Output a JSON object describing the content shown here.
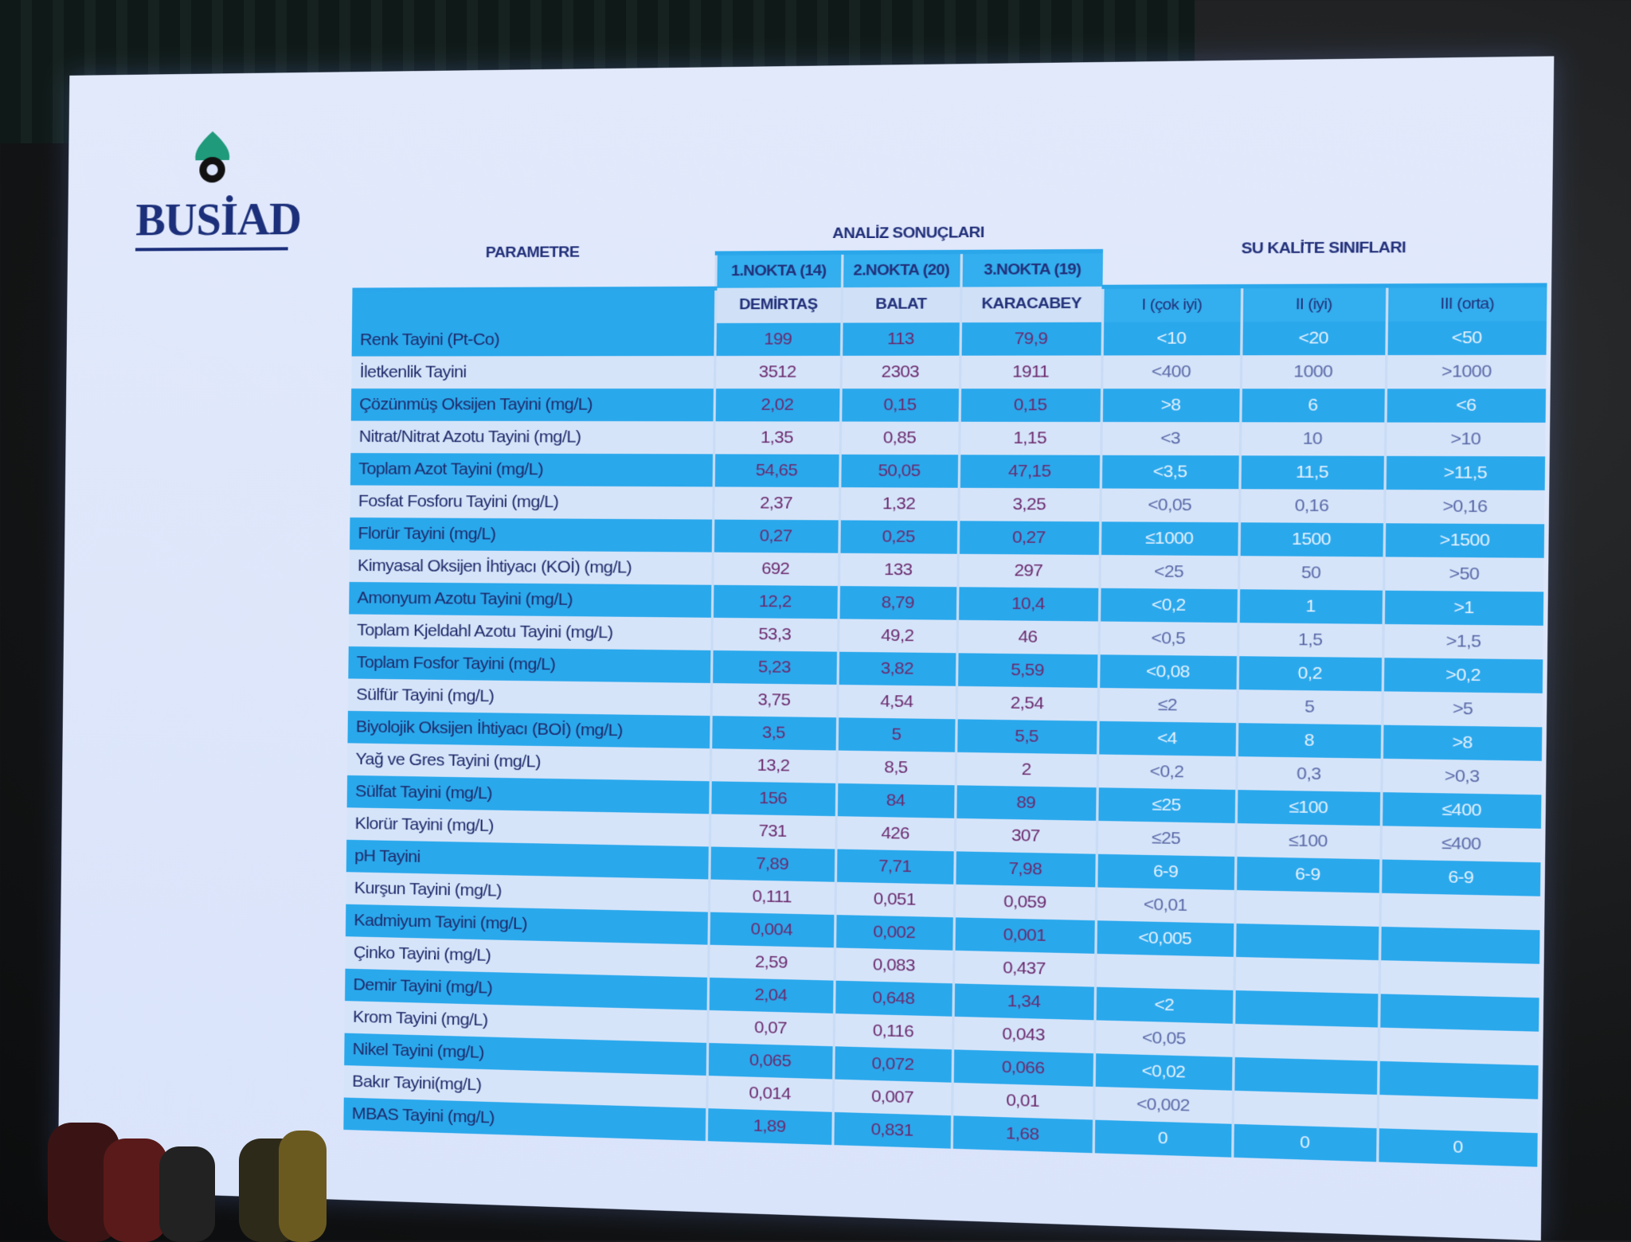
{
  "logo": {
    "name": "BUSİAD"
  },
  "table": {
    "header": {
      "parameter": "PARAMETRE",
      "analysis": "ANALİZ SONUÇLARI",
      "classes": "SU KALİTE SINIFLARI",
      "points": [
        "1.NOKTA (14)",
        "2.NOKTA (20)",
        "3.NOKTA (19)"
      ],
      "locations": [
        "DEMİRTAŞ",
        "BALAT",
        "KARACABEY"
      ],
      "class_names": [
        "I (çok iyi)",
        "II (iyi)",
        "III (orta)"
      ]
    },
    "rows": [
      [
        "Renk Tayini (Pt-Co)",
        "199",
        "113",
        "79,9",
        "<10",
        "<20",
        "<50"
      ],
      [
        "İletkenlik Tayini",
        "3512",
        "2303",
        "1911",
        "<400",
        "1000",
        ">1000"
      ],
      [
        "Çözünmüş Oksijen Tayini (mg/L)",
        "2,02",
        "0,15",
        "0,15",
        ">8",
        "6",
        "<6"
      ],
      [
        "Nitrat/Nitrat Azotu Tayini (mg/L)",
        "1,35",
        "0,85",
        "1,15",
        "<3",
        "10",
        ">10"
      ],
      [
        "Toplam Azot Tayini (mg/L)",
        "54,65",
        "50,05",
        "47,15",
        "<3,5",
        "11,5",
        ">11,5"
      ],
      [
        "Fosfat Fosforu Tayini (mg/L)",
        "2,37",
        "1,32",
        "3,25",
        "<0,05",
        "0,16",
        ">0,16"
      ],
      [
        "Florür Tayini (mg/L)",
        "0,27",
        "0,25",
        "0,27",
        "≤1000",
        "1500",
        ">1500"
      ],
      [
        "Kimyasal Oksijen İhtiyacı (KOİ) (mg/L)",
        "692",
        "133",
        "297",
        "<25",
        "50",
        ">50"
      ],
      [
        "Amonyum Azotu Tayini (mg/L)",
        "12,2",
        "8,79",
        "10,4",
        "<0,2",
        "1",
        ">1"
      ],
      [
        "Toplam Kjeldahl Azotu Tayini (mg/L)",
        "53,3",
        "49,2",
        "46",
        "<0,5",
        "1,5",
        ">1,5"
      ],
      [
        "Toplam Fosfor Tayini (mg/L)",
        "5,23",
        "3,82",
        "5,59",
        "<0,08",
        "0,2",
        ">0,2"
      ],
      [
        "Sülfür Tayini (mg/L)",
        "3,75",
        "4,54",
        "2,54",
        "≤2",
        "5",
        ">5"
      ],
      [
        "Biyolojik Oksijen İhtiyacı (BOİ) (mg/L)",
        "3,5",
        "5",
        "5,5",
        "<4",
        "8",
        ">8"
      ],
      [
        "Yağ ve Gres Tayini (mg/L)",
        "13,2",
        "8,5",
        "2",
        "<0,2",
        "0,3",
        ">0,3"
      ],
      [
        "Sülfat Tayini (mg/L)",
        "156",
        "84",
        "89",
        "≤25",
        "≤100",
        "≤400"
      ],
      [
        "Klorür Tayini (mg/L)",
        "731",
        "426",
        "307",
        "≤25",
        "≤100",
        "≤400"
      ],
      [
        "pH Tayini",
        "7,89",
        "7,71",
        "7,98",
        "6-9",
        "6-9",
        "6-9"
      ],
      [
        "Kurşun Tayini (mg/L)",
        "0,111",
        "0,051",
        "0,059",
        "<0,01",
        null,
        null
      ],
      [
        "Kadmiyum Tayini (mg/L)",
        "0,004",
        "0,002",
        "0,001",
        "<0,005",
        null,
        null
      ],
      [
        "Çinko Tayini (mg/L)",
        "2,59",
        "0,083",
        "0,437",
        null,
        null,
        null
      ],
      [
        "Demir Tayini (mg/L)",
        "2,04",
        "0,648",
        "1,34",
        "<2",
        null,
        null
      ],
      [
        "Krom Tayini (mg/L)",
        "0,07",
        "0,116",
        "0,043",
        "<0,05",
        null,
        null
      ],
      [
        "Nikel Tayini (mg/L)",
        "0,065",
        "0,072",
        "0,066",
        "<0,02",
        null,
        null
      ],
      [
        "Bakır Tayini(mg/L)",
        "0,014",
        "0,007",
        "0,01",
        "<0,002",
        null,
        null
      ],
      [
        "MBAS Tayini (mg/L)",
        "1,89",
        "0,831",
        "1,68",
        "0",
        "0",
        "0"
      ]
    ]
  }
}
